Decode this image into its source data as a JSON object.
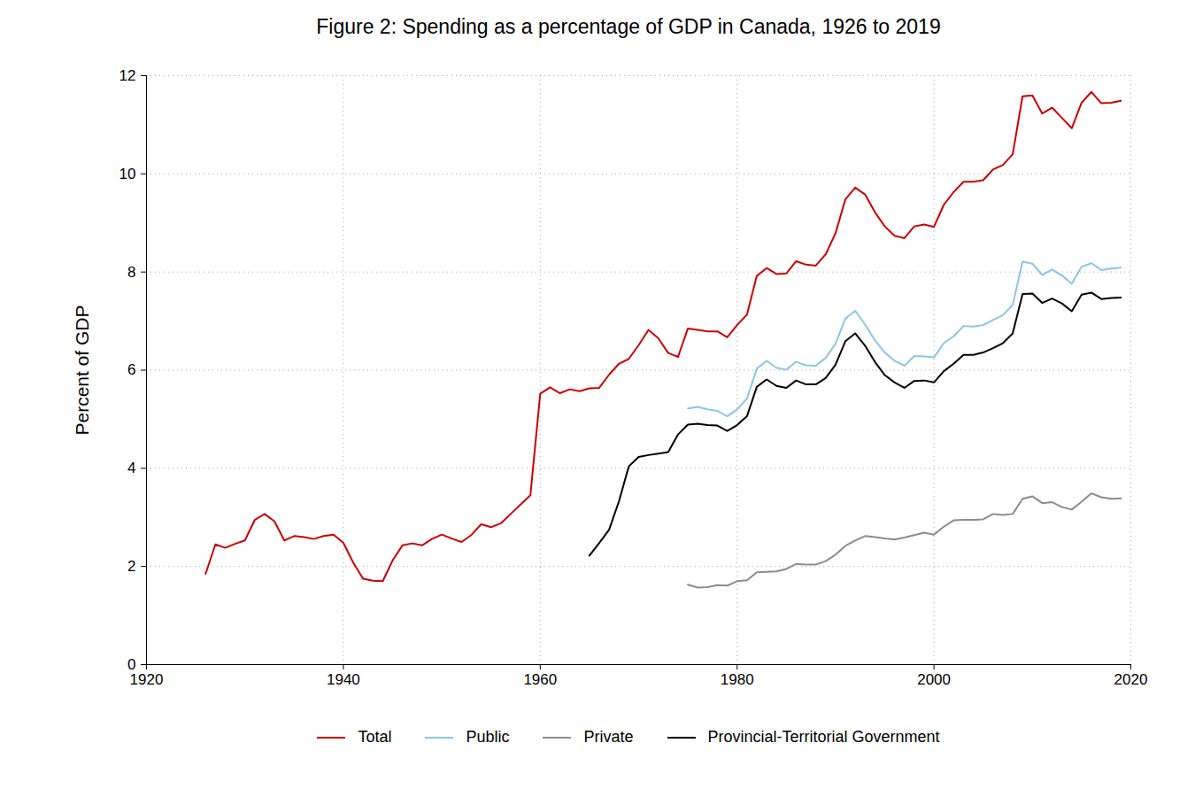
{
  "chart_data": {
    "type": "line",
    "title": "Figure 2: Spending as a percentage of GDP in Canada, 1926 to 2019",
    "y_label": "Percent of GDP",
    "x": [
      1926,
      1927,
      1928,
      1929,
      1930,
      1931,
      1932,
      1933,
      1934,
      1935,
      1936,
      1937,
      1938,
      1939,
      1940,
      1941,
      1942,
      1943,
      1944,
      1945,
      1946,
      1947,
      1948,
      1949,
      1950,
      1951,
      1952,
      1953,
      1954,
      1955,
      1956,
      1957,
      1958,
      1959,
      1960,
      1961,
      1962,
      1963,
      1964,
      1965,
      1966,
      1967,
      1968,
      1969,
      1970,
      1971,
      1972,
      1973,
      1974,
      1975,
      1976,
      1977,
      1978,
      1979,
      1980,
      1981,
      1982,
      1983,
      1984,
      1985,
      1986,
      1987,
      1988,
      1989,
      1990,
      1991,
      1992,
      1993,
      1994,
      1995,
      1996,
      1997,
      1998,
      1999,
      2000,
      2001,
      2002,
      2003,
      2004,
      2005,
      2006,
      2007,
      2008,
      2009,
      2010,
      2011,
      2012,
      2013,
      2014,
      2015,
      2016,
      2017,
      2018,
      2019
    ],
    "series": [
      {
        "name": "Total",
        "color": "#cc0000",
        "values": [
          1.85,
          2.45,
          2.38,
          2.46,
          2.53,
          2.95,
          3.07,
          2.92,
          2.53,
          2.62,
          2.6,
          2.56,
          2.62,
          2.65,
          2.48,
          2.08,
          1.75,
          1.71,
          1.7,
          2.12,
          2.43,
          2.47,
          2.43,
          2.56,
          2.65,
          2.57,
          2.5,
          2.64,
          2.86,
          2.8,
          2.88,
          3.07,
          3.26,
          3.45,
          5.52,
          5.65,
          5.53,
          5.61,
          5.57,
          5.63,
          5.64,
          5.91,
          6.13,
          6.23,
          6.51,
          6.82,
          6.65,
          6.35,
          6.27,
          6.85,
          6.82,
          6.79,
          6.79,
          6.67,
          6.92,
          7.13,
          7.92,
          8.08,
          7.96,
          7.97,
          8.22,
          8.15,
          8.13,
          8.36,
          8.79,
          9.48,
          9.72,
          9.58,
          9.22,
          8.93,
          8.74,
          8.69,
          8.93,
          8.97,
          8.92,
          9.37,
          9.63,
          9.84,
          9.84,
          9.87,
          10.09,
          10.18,
          10.4,
          11.58,
          11.6,
          11.23,
          11.35,
          11.14,
          10.93,
          11.45,
          11.67,
          11.44,
          11.45,
          11.49
        ]
      },
      {
        "name": "Public",
        "color": "#8ec4e6",
        "values": [
          null,
          null,
          null,
          null,
          null,
          null,
          null,
          null,
          null,
          null,
          null,
          null,
          null,
          null,
          null,
          null,
          null,
          null,
          null,
          null,
          null,
          null,
          null,
          null,
          null,
          null,
          null,
          null,
          null,
          null,
          null,
          null,
          null,
          null,
          null,
          null,
          null,
          null,
          null,
          null,
          null,
          null,
          null,
          null,
          null,
          null,
          null,
          null,
          null,
          5.22,
          5.25,
          5.2,
          5.17,
          5.06,
          5.2,
          5.42,
          6.03,
          6.19,
          6.05,
          6.01,
          6.17,
          6.1,
          6.09,
          6.25,
          6.54,
          7.05,
          7.21,
          6.93,
          6.61,
          6.36,
          6.19,
          6.09,
          6.29,
          6.28,
          6.26,
          6.55,
          6.69,
          6.9,
          6.89,
          6.92,
          7.02,
          7.12,
          7.33,
          8.21,
          8.17,
          7.94,
          8.05,
          7.93,
          7.76,
          8.11,
          8.18,
          8.04,
          8.07,
          8.09
        ]
      },
      {
        "name": "Private",
        "color": "#8c8c8c",
        "values": [
          null,
          null,
          null,
          null,
          null,
          null,
          null,
          null,
          null,
          null,
          null,
          null,
          null,
          null,
          null,
          null,
          null,
          null,
          null,
          null,
          null,
          null,
          null,
          null,
          null,
          null,
          null,
          null,
          null,
          null,
          null,
          null,
          null,
          null,
          null,
          null,
          null,
          null,
          null,
          null,
          null,
          null,
          null,
          null,
          null,
          null,
          null,
          null,
          null,
          1.63,
          1.57,
          1.58,
          1.62,
          1.61,
          1.7,
          1.72,
          1.88,
          1.89,
          1.9,
          1.95,
          2.05,
          2.04,
          2.04,
          2.11,
          2.24,
          2.42,
          2.53,
          2.62,
          2.6,
          2.57,
          2.55,
          2.59,
          2.64,
          2.69,
          2.65,
          2.81,
          2.94,
          2.95,
          2.95,
          2.96,
          3.07,
          3.05,
          3.07,
          3.38,
          3.43,
          3.29,
          3.31,
          3.21,
          3.16,
          3.32,
          3.49,
          3.41,
          3.38,
          3.39
        ]
      },
      {
        "name": "Provincial-Territorial Government",
        "color": "#000000",
        "values": [
          null,
          null,
          null,
          null,
          null,
          null,
          null,
          null,
          null,
          null,
          null,
          null,
          null,
          null,
          null,
          null,
          null,
          null,
          null,
          null,
          null,
          null,
          null,
          null,
          null,
          null,
          null,
          null,
          null,
          null,
          null,
          null,
          null,
          null,
          null,
          null,
          null,
          null,
          null,
          2.22,
          2.48,
          2.75,
          3.33,
          4.04,
          4.23,
          4.27,
          4.3,
          4.33,
          4.69,
          4.89,
          4.91,
          4.88,
          4.87,
          4.76,
          4.88,
          5.06,
          5.66,
          5.81,
          5.68,
          5.64,
          5.79,
          5.71,
          5.71,
          5.84,
          6.11,
          6.59,
          6.75,
          6.5,
          6.17,
          5.9,
          5.75,
          5.64,
          5.78,
          5.79,
          5.75,
          5.98,
          6.13,
          6.31,
          6.31,
          6.36,
          6.45,
          6.55,
          6.75,
          7.55,
          7.56,
          7.37,
          7.46,
          7.36,
          7.2,
          7.54,
          7.58,
          7.45,
          7.47,
          7.48
        ]
      }
    ],
    "xlim": [
      1920,
      2020
    ],
    "xticks": [
      1920,
      1940,
      1960,
      1980,
      2000,
      2020
    ],
    "ylim": [
      0,
      12
    ],
    "yticks": [
      0,
      2,
      4,
      6,
      8,
      10,
      12
    ],
    "grid": true,
    "legend": "bottom"
  }
}
